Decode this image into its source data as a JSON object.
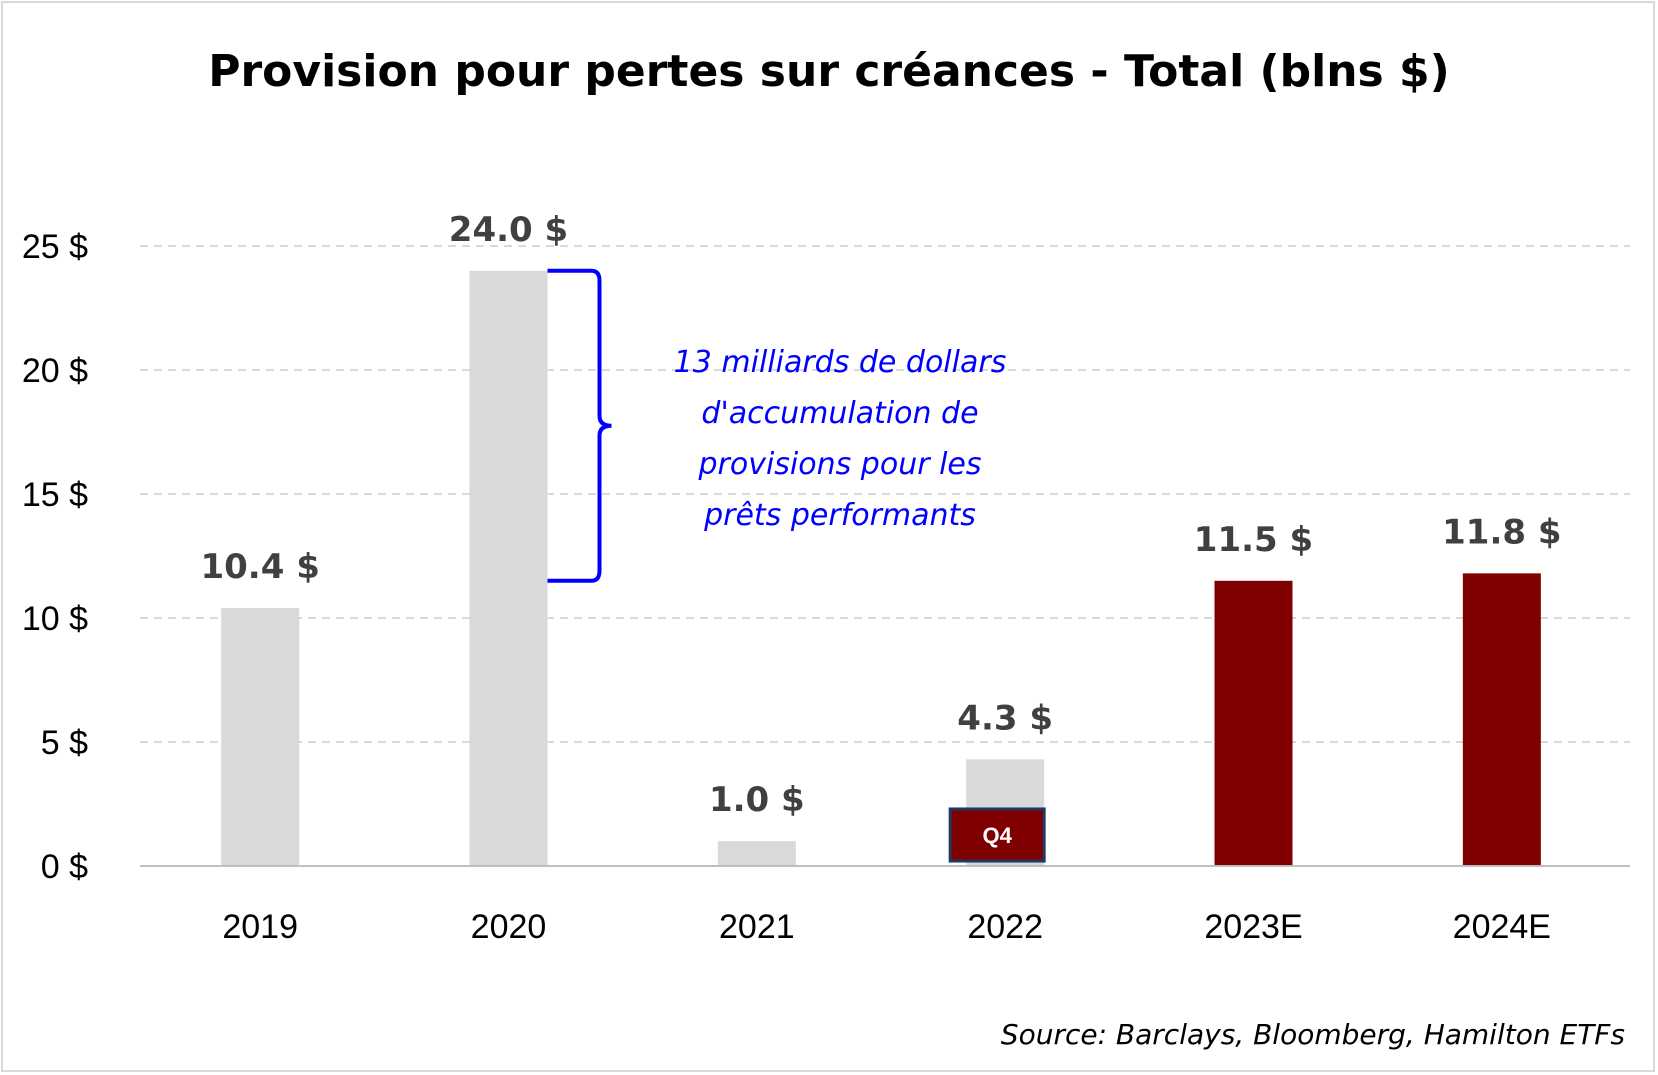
{
  "chart_data": {
    "type": "bar",
    "title": "Provision pour pertes sur créances - Total (blns $)",
    "xlabel": "",
    "ylabel": "",
    "categories": [
      "2019",
      "2020",
      "2021",
      "2022",
      "2023E",
      "2024E"
    ],
    "values": [
      10.4,
      24.0,
      1.0,
      4.3,
      11.5,
      11.8
    ],
    "data_labels": [
      "10.4 $",
      "24.0 $",
      "1.0 $",
      "4.3 $",
      "11.5 $",
      "11.8 $"
    ],
    "bar_colors": [
      "#d9d9d9",
      "#d9d9d9",
      "#d9d9d9",
      "#d9d9d9",
      "#800000",
      "#800000"
    ],
    "ylim": [
      0,
      25
    ],
    "yticks": [
      0,
      5,
      10,
      15,
      20,
      25
    ],
    "ytick_labels": [
      "0 $",
      "5 $",
      "10 $",
      "15 $",
      "20 $",
      "25 $"
    ],
    "grid": true,
    "q4_segment": {
      "category": "2022",
      "label": "Q4",
      "value_range": [
        0.2,
        2.3
      ],
      "fill": "#800000",
      "border": "#1f3864"
    },
    "annotation": {
      "lines": [
        "13 milliards de dollars",
        "d'accumulation de",
        "provisions pour les",
        "prêts performants"
      ],
      "bracket_range": [
        11.5,
        24.0
      ],
      "color": "#0000ff"
    },
    "source": "Source: Barclays, Bloomberg, Hamilton ETFs"
  }
}
